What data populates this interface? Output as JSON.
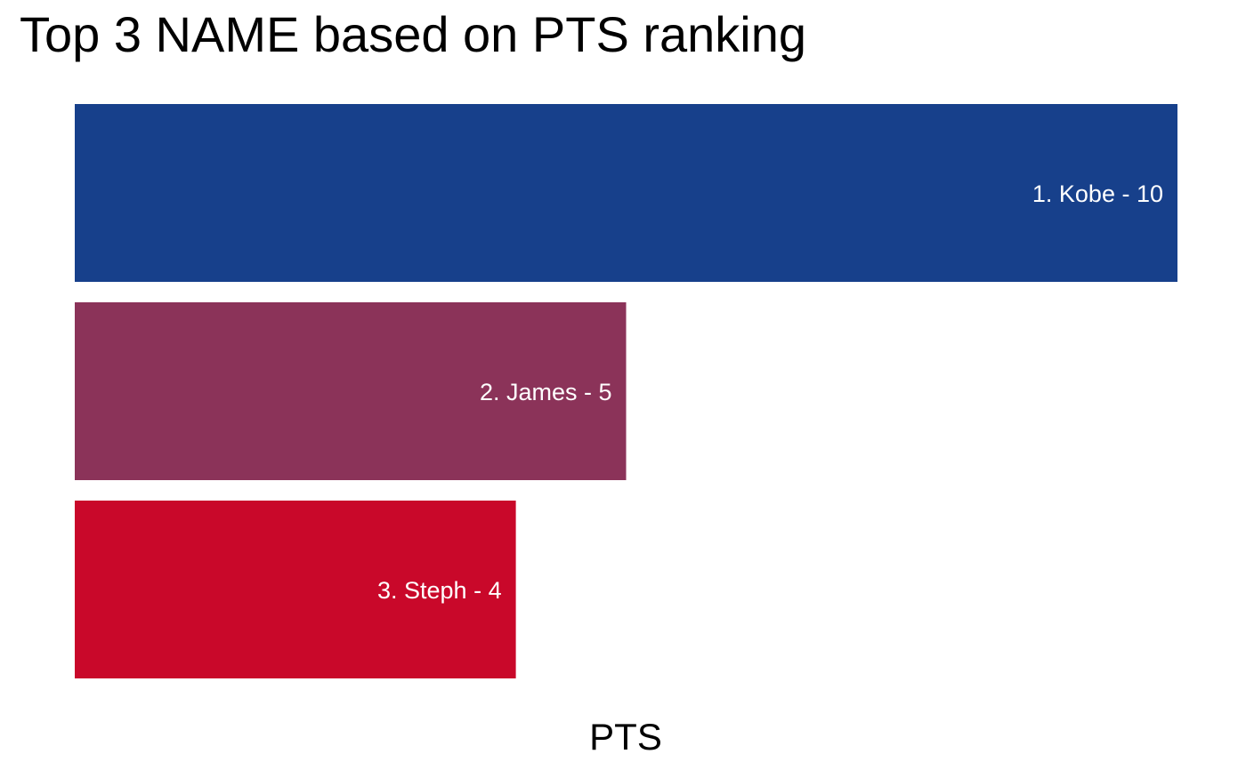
{
  "chart_data": {
    "type": "bar",
    "orientation": "horizontal",
    "title": "Top 3 NAME based on PTS ranking",
    "xlabel": "PTS",
    "ylabel": "",
    "xlim": [
      0,
      10
    ],
    "grid": false,
    "legend": "none",
    "categories": [
      "Kobe",
      "James",
      "Steph"
    ],
    "values": [
      10,
      5,
      4
    ],
    "bar_labels": [
      "1. Kobe - 10",
      "2. James - 5",
      "3. Steph - 4"
    ],
    "colors": [
      "#17408B",
      "#8B3359",
      "#C9082A"
    ]
  }
}
